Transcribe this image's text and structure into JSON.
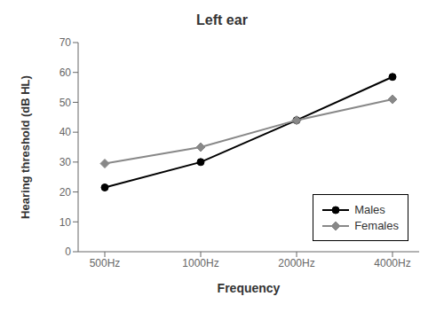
{
  "chart_data": {
    "type": "line",
    "title": "Left ear",
    "xlabel": "Frequency",
    "ylabel": "Hearing threshold (dB HL)",
    "categories": [
      "500Hz",
      "1000Hz",
      "2000Hz",
      "4000Hz"
    ],
    "series": [
      {
        "name": "Males",
        "color": "#000000",
        "marker": "circle",
        "values": [
          21.5,
          30.0,
          44.0,
          58.5
        ]
      },
      {
        "name": "Females",
        "color": "#888888",
        "marker": "diamond",
        "values": [
          29.5,
          35.0,
          44.0,
          51.0
        ]
      }
    ],
    "ylim": [
      0,
      70
    ],
    "yticks": [
      0,
      10,
      20,
      30,
      40,
      50,
      60,
      70
    ],
    "grid": false,
    "legend": "lower right"
  }
}
